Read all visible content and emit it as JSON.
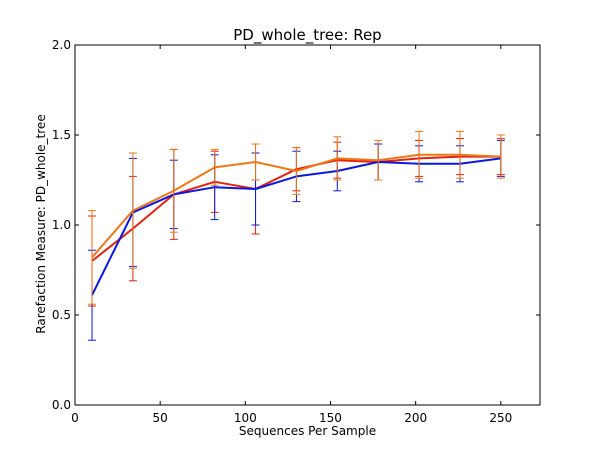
{
  "chart_data": {
    "type": "line",
    "title": "PD_whole_tree: Rep",
    "xlabel": "Sequences Per Sample",
    "ylabel": "Rarefaction Measure: PD_whole_tree",
    "xlim": [
      0,
      273
    ],
    "ylim": [
      0.0,
      2.0
    ],
    "xticks": [
      0,
      50,
      100,
      150,
      200,
      250
    ],
    "yticks": [
      0.0,
      0.5,
      1.0,
      1.5,
      2.0
    ],
    "ytick_labels": [
      "0.0",
      "0.5",
      "1.0",
      "1.5",
      "2.0"
    ],
    "grid": false,
    "x": [
      10,
      34,
      58,
      82,
      106,
      130,
      154,
      178,
      202,
      226,
      250
    ],
    "series": [
      {
        "color": "#e8200c",
        "values": [
          0.8,
          0.98,
          1.17,
          1.24,
          1.2,
          1.31,
          1.36,
          1.35,
          1.37,
          1.38,
          1.38
        ],
        "err": [
          0.25,
          0.29,
          0.25,
          0.17,
          0.25,
          0.12,
          0.1,
          0.1,
          0.1,
          0.1,
          0.1
        ]
      },
      {
        "color": "#0b18e0",
        "values": [
          0.61,
          1.07,
          1.17,
          1.21,
          1.2,
          1.27,
          1.3,
          1.35,
          1.34,
          1.34,
          1.37
        ],
        "err": [
          0.25,
          0.3,
          0.19,
          0.18,
          0.2,
          0.14,
          0.11,
          0.1,
          0.1,
          0.1,
          0.1
        ]
      },
      {
        "color": "#f07814",
        "values": [
          0.82,
          1.08,
          1.19,
          1.32,
          1.35,
          1.3,
          1.37,
          1.36,
          1.39,
          1.39,
          1.38
        ],
        "err": [
          0.26,
          0.32,
          0.23,
          0.1,
          0.1,
          0.13,
          0.12,
          0.11,
          0.13,
          0.13,
          0.12
        ]
      }
    ]
  }
}
